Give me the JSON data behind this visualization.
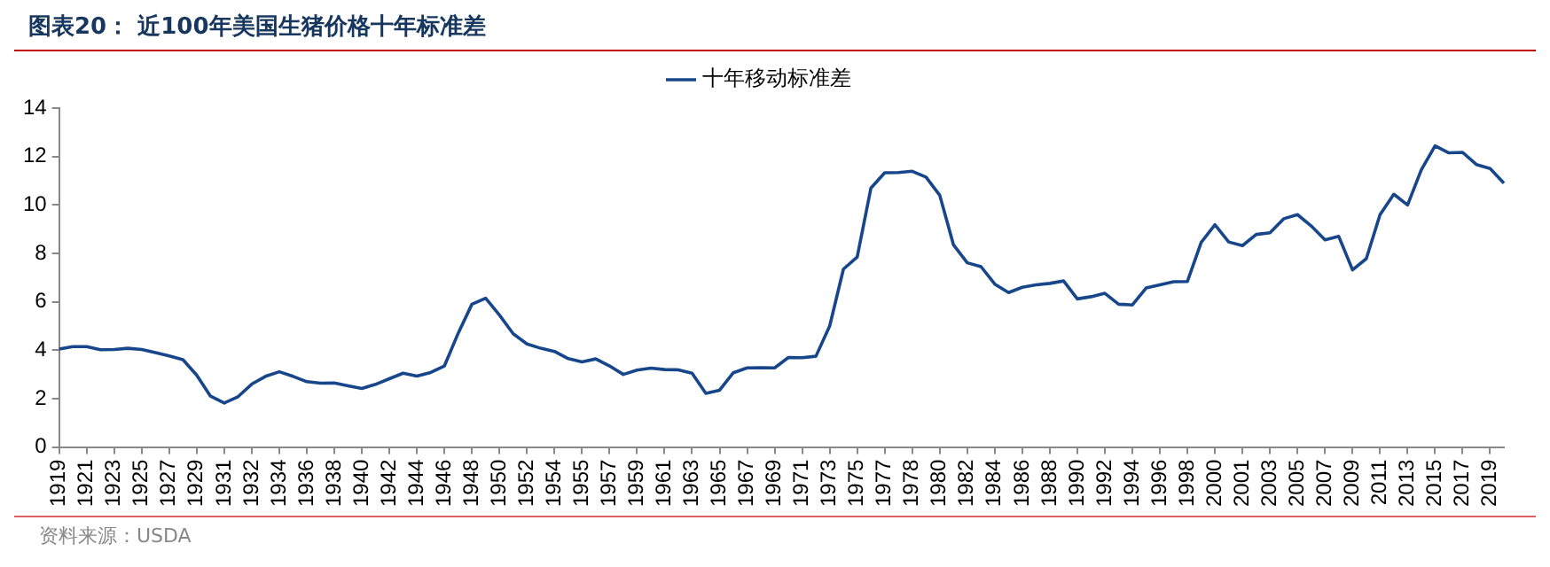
{
  "chart_data": {
    "type": "line",
    "title": "图表20：  近100年美国生猪价格十年标准差",
    "annotations": [
      "资料来源：USDA"
    ],
    "legend": "top",
    "marker": "none",
    "line_style": "solid",
    "grid": false,
    "ylim": [
      0,
      14
    ],
    "yticks": [
      0,
      2,
      4,
      6,
      8,
      10,
      12,
      14
    ],
    "categories": [
      "1919",
      null,
      "1921",
      null,
      "1923",
      null,
      "1925",
      null,
      "1927",
      null,
      "1929",
      null,
      "1931",
      null,
      "1932",
      null,
      "1934",
      null,
      "1936",
      null,
      "1938",
      null,
      "1940",
      null,
      "1942",
      null,
      "1944",
      null,
      "1946",
      null,
      "1948",
      null,
      "1950",
      null,
      "1952",
      null,
      "1954",
      null,
      "1955",
      null,
      "1957",
      null,
      "1959",
      null,
      "1961",
      null,
      "1963",
      null,
      "1965",
      null,
      "1967",
      null,
      "1969",
      null,
      "1971",
      null,
      "1973",
      null,
      "1975",
      null,
      "1977",
      null,
      "1978",
      null,
      "1980",
      null,
      "1982",
      null,
      "1984",
      null,
      "1986",
      null,
      "1988",
      null,
      "1990",
      null,
      "1992",
      null,
      "1994",
      null,
      "1996",
      null,
      "1998",
      null,
      "2000",
      null,
      "2001",
      null,
      "2003",
      null,
      "2005",
      null,
      "2007",
      null,
      "2009",
      null,
      "2011",
      null,
      "2013",
      null,
      "2015",
      null,
      "2017",
      null,
      "2019",
      null
    ],
    "series": [
      {
        "name": "十年移动标准差",
        "color": "#17468a",
        "values": [
          4.05,
          4.15,
          4.15,
          4.02,
          4.03,
          4.08,
          4.03,
          3.9,
          3.76,
          3.61,
          2.97,
          2.1,
          1.82,
          2.08,
          2.6,
          2.92,
          3.11,
          2.92,
          2.7,
          2.64,
          2.65,
          2.53,
          2.42,
          2.59,
          2.82,
          3.05,
          2.93,
          3.08,
          3.35,
          4.7,
          5.9,
          6.15,
          5.45,
          4.68,
          4.26,
          4.08,
          3.95,
          3.65,
          3.52,
          3.64,
          3.35,
          3.0,
          3.18,
          3.26,
          3.2,
          3.19,
          3.05,
          2.22,
          2.35,
          3.07,
          3.27,
          3.28,
          3.27,
          3.7,
          3.69,
          3.75,
          5.0,
          7.35,
          7.85,
          10.7,
          11.33,
          11.34,
          11.39,
          11.15,
          10.4,
          8.35,
          7.61,
          7.45,
          6.73,
          6.38,
          6.6,
          6.7,
          6.76,
          6.86,
          6.12,
          6.21,
          6.35,
          5.9,
          5.87,
          6.57,
          6.7,
          6.83,
          6.84,
          8.45,
          9.18,
          8.47,
          8.32,
          8.78,
          8.85,
          9.43,
          9.6,
          9.13,
          8.56,
          8.7,
          7.32,
          7.78,
          9.6,
          10.44,
          10.0,
          11.45,
          12.44,
          12.15,
          12.17,
          11.67,
          11.5,
          10.9
        ]
      }
    ]
  }
}
